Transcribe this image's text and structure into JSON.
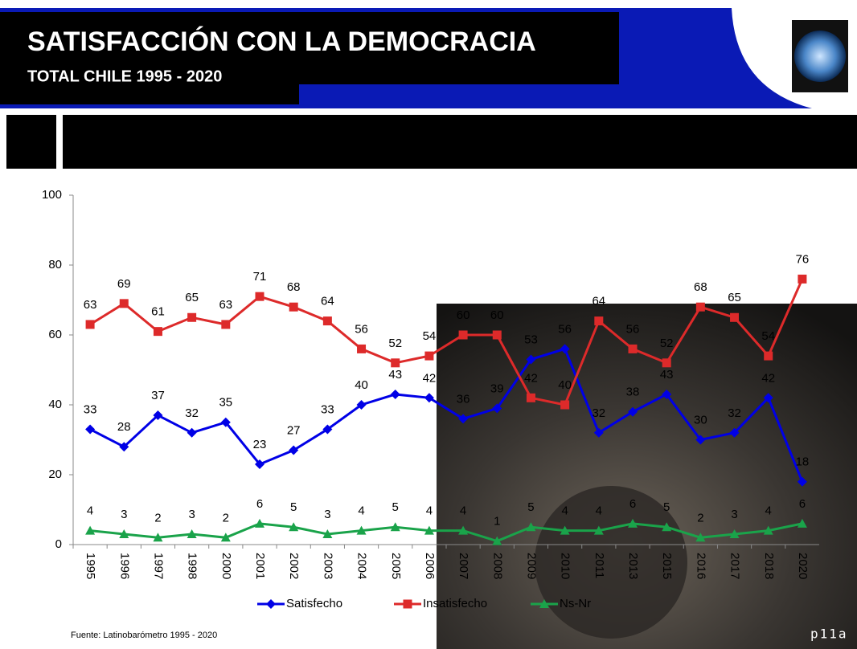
{
  "chart_data": {
    "type": "line",
    "title": "SATISFACCIÓN CON LA DEMOCRACIA",
    "subtitle": "TOTAL CHILE 1995 - 2020",
    "source": "Fuente: Latinobarómetro  1995 - 2020",
    "page_label": "p11a",
    "categories": [
      "1995",
      "1996",
      "1997",
      "1998",
      "2000",
      "2001",
      "2002",
      "2003",
      "2004",
      "2005",
      "2006",
      "2007",
      "2008",
      "2009",
      "2010",
      "2011",
      "2013",
      "2015",
      "2016",
      "2017",
      "2018",
      "2020"
    ],
    "series": [
      {
        "name": "Satisfecho",
        "color": "#0000e6",
        "marker": "diamond",
        "values": [
          33,
          28,
          37,
          32,
          35,
          23,
          27,
          33,
          40,
          43,
          42,
          36,
          39,
          53,
          56,
          32,
          38,
          43,
          30,
          32,
          42,
          18
        ]
      },
      {
        "name": "Insatisfecho",
        "color": "#dd2a2a",
        "marker": "square",
        "values": [
          63,
          69,
          61,
          65,
          63,
          71,
          68,
          64,
          56,
          52,
          54,
          60,
          60,
          42,
          40,
          64,
          56,
          52,
          68,
          65,
          54,
          76
        ]
      },
      {
        "name": "Ns-Nr",
        "color": "#1aa34a",
        "marker": "triangle",
        "values": [
          4,
          3,
          2,
          3,
          2,
          6,
          5,
          3,
          4,
          5,
          4,
          4,
          1,
          5,
          4,
          4,
          6,
          5,
          2,
          3,
          4,
          6
        ]
      }
    ],
    "ylim": [
      0,
      100
    ],
    "yticks": [
      0,
      20,
      40,
      60,
      80,
      100
    ],
    "grid": false
  }
}
